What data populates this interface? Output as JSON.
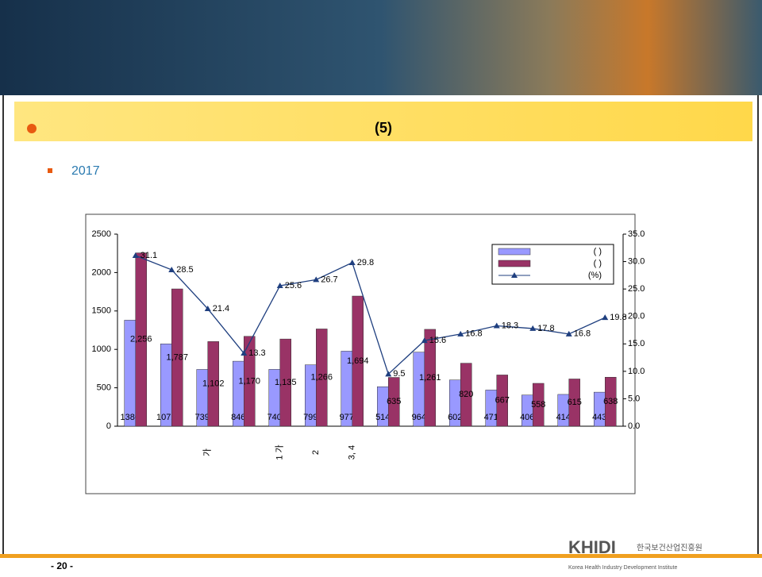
{
  "slide": {
    "title": "(5)",
    "bullet": "2017",
    "page": "- 20 -",
    "logo": "KHIDI",
    "logo_korean": "한국보건산업진흥원",
    "logo_english": "Korea Health Industry Development Institute"
  },
  "chart_data": {
    "type": "bar",
    "categories": [
      null,
      null,
      "가",
      null,
      "1 가",
      "2",
      "3, 4",
      null,
      null,
      null,
      null,
      null,
      null,
      null
    ],
    "series": [
      {
        "name": "(  )",
        "color": "#9999ff",
        "values": [
          1380,
          1072,
          739,
          846,
          740,
          799,
          977,
          514,
          964,
          602,
          471,
          406,
          414,
          443
        ]
      },
      {
        "name": "(  )",
        "color": "#993366",
        "values": [
          2256,
          1787,
          1102,
          1170,
          1135,
          1266,
          1694,
          635,
          1261,
          820,
          667,
          558,
          615,
          638
        ],
        "value_labels": [
          "2,256",
          "1,787",
          "1,102",
          "1,170",
          "1,135",
          "1,266",
          "1,694",
          "635",
          "1,261",
          "820",
          "667",
          "558",
          "615",
          "638"
        ]
      },
      {
        "name": "(%)",
        "color": "#1f3f7f",
        "type": "line",
        "axis": "y2",
        "values": [
          31.1,
          28.5,
          21.4,
          13.3,
          25.6,
          26.7,
          29.8,
          9.5,
          15.6,
          16.8,
          18.3,
          17.8,
          16.8,
          19.8
        ]
      }
    ],
    "ylim": [
      0,
      2500
    ],
    "yticks": [
      0,
      500,
      1000,
      1500,
      2000,
      2500
    ],
    "y2lim": [
      0,
      35
    ],
    "y2ticks": [
      {
        "value": 0,
        "label": "0.0"
      },
      {
        "value": 5,
        "label": "5.0"
      },
      {
        "value": 10,
        "label": "10.0"
      },
      {
        "value": 15,
        "label": "15.0"
      },
      {
        "value": 20,
        "label": "20.0"
      },
      {
        "value": 25,
        "label": "25.0"
      },
      {
        "value": 30,
        "label": "30.0"
      },
      {
        "value": 35,
        "label": "35.0"
      }
    ],
    "legend": "upper right"
  }
}
